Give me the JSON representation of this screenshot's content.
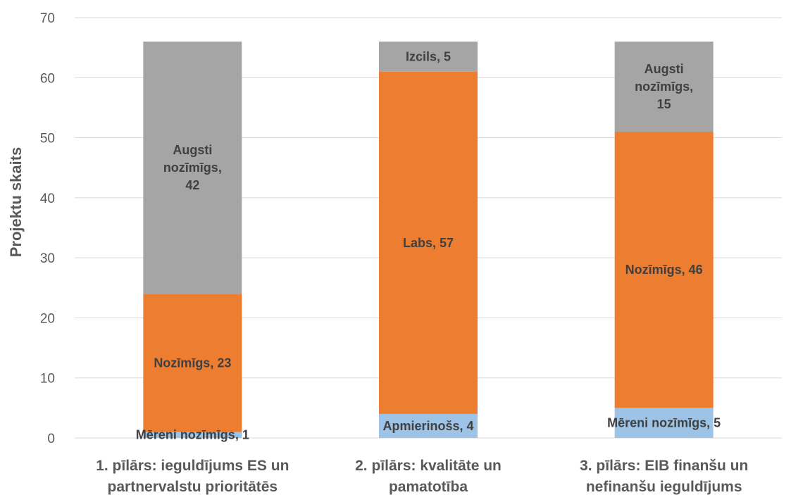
{
  "chart_data": {
    "type": "bar",
    "stacked": true,
    "title": "",
    "xlabel": "",
    "ylabel": "Projektu skaits",
    "ylim": [
      0,
      70
    ],
    "yticks": [
      0,
      10,
      20,
      30,
      40,
      50,
      60,
      70
    ],
    "grid": true,
    "legend": "none",
    "categories": [
      [
        "1. pīlārs: ieguldījums ES un",
        "partnervalstu prioritātēs"
      ],
      [
        "2. pīlārs: kvalitāte un",
        "pamatotība"
      ],
      [
        "3. pīlārs: EIB finanšu un",
        "nefinanšu ieguldījums"
      ]
    ],
    "stacks": [
      [
        {
          "label": [
            "Mēreni nozīmīgs, 1"
          ],
          "value": 1,
          "color": "#9dc3e6"
        },
        {
          "label": [
            "Nozīmīgs, 23"
          ],
          "value": 23,
          "color": "#ed7d31"
        },
        {
          "label": [
            "Augsti",
            "nozīmīgs,",
            "42"
          ],
          "value": 42,
          "color": "#a5a5a5"
        }
      ],
      [
        {
          "label": [
            "Apmierinošs, 4"
          ],
          "value": 4,
          "color": "#9dc3e6"
        },
        {
          "label": [
            "Labs, 57"
          ],
          "value": 57,
          "color": "#ed7d31"
        },
        {
          "label": [
            "Izcils, 5"
          ],
          "value": 5,
          "color": "#a5a5a5"
        }
      ],
      [
        {
          "label": [
            "Mēreni nozīmīgs, 5"
          ],
          "value": 5,
          "color": "#9dc3e6"
        },
        {
          "label": [
            "Nozīmīgs, 46"
          ],
          "value": 46,
          "color": "#ed7d31"
        },
        {
          "label": [
            "Augsti",
            "nozīmīgs,",
            "15"
          ],
          "value": 15,
          "color": "#a5a5a5"
        }
      ]
    ],
    "colors": {
      "gridline": "#d9d9d9",
      "text": "#595959",
      "segment_text": "#404040"
    }
  }
}
